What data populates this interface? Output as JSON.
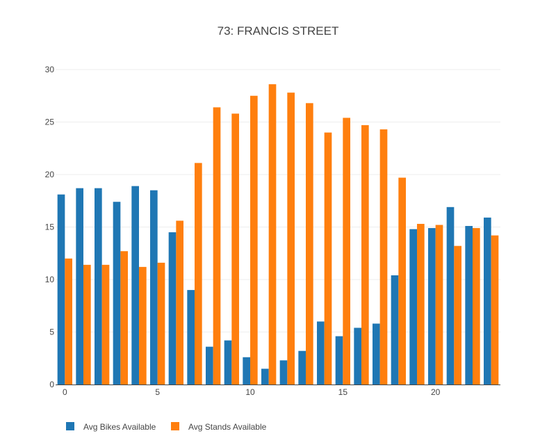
{
  "chart_data": {
    "type": "bar",
    "title": "73: FRANCIS STREET",
    "xlabel": "",
    "ylabel": "",
    "x": [
      0,
      1,
      2,
      3,
      4,
      5,
      6,
      7,
      8,
      9,
      10,
      11,
      12,
      13,
      14,
      15,
      16,
      17,
      18,
      19,
      20,
      21,
      22,
      23
    ],
    "xticks": [
      0,
      5,
      10,
      15,
      20
    ],
    "yticks": [
      0,
      5,
      10,
      15,
      20,
      25,
      30
    ],
    "ylim": [
      0,
      30
    ],
    "xlim": [
      -0.5,
      23.5
    ],
    "grid": true,
    "legend_position": "bottom-left",
    "series": [
      {
        "name": "Avg Bikes Available",
        "color": "#1f77b4",
        "values": [
          18.1,
          18.7,
          18.7,
          17.4,
          18.9,
          18.5,
          14.5,
          9.0,
          3.6,
          4.2,
          2.6,
          1.5,
          2.3,
          3.2,
          6.0,
          4.6,
          5.4,
          5.8,
          10.4,
          14.8,
          14.9,
          16.9,
          15.1,
          15.9
        ]
      },
      {
        "name": "Avg Stands Available",
        "color": "#ff7f0e",
        "values": [
          12.0,
          11.4,
          11.4,
          12.7,
          11.2,
          11.6,
          15.6,
          21.1,
          26.4,
          25.8,
          27.5,
          28.6,
          27.8,
          26.8,
          24.0,
          25.4,
          24.7,
          24.3,
          19.7,
          15.3,
          15.2,
          13.2,
          14.9,
          14.2
        ]
      }
    ]
  }
}
